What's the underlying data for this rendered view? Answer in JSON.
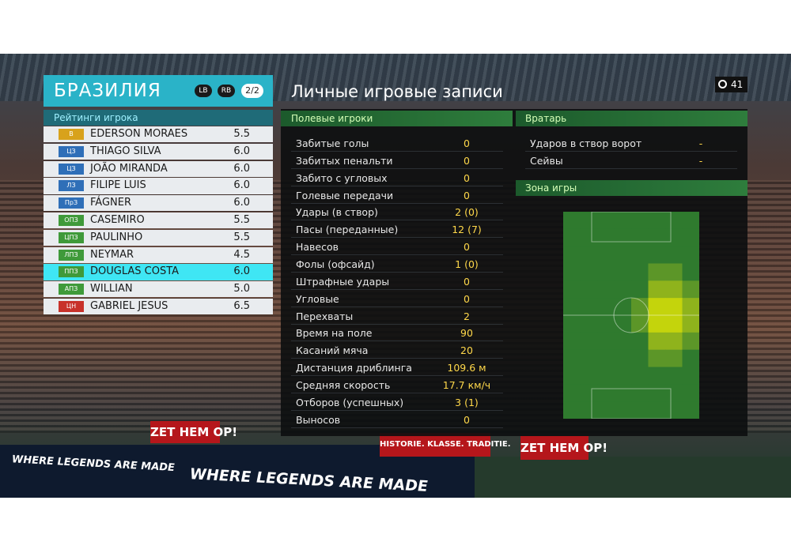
{
  "team": {
    "name": "БРАЗИЛИЯ",
    "buttons": [
      "LB",
      "RB"
    ],
    "page": "2/2"
  },
  "ratings": {
    "title": "Рейтинги игрока",
    "selected": 8,
    "players": [
      {
        "position": "В",
        "name": "EDERSON MORAES",
        "rating": "5.5",
        "color": "#d8a21c"
      },
      {
        "position": "ЦЗ",
        "name": "THIAGO SILVA",
        "rating": "6.0",
        "color": "#2f6fb8"
      },
      {
        "position": "ЦЗ",
        "name": "JOÃO MIRANDA",
        "rating": "6.0",
        "color": "#2f6fb8"
      },
      {
        "position": "ЛЗ",
        "name": "FILIPE LUIS",
        "rating": "6.0",
        "color": "#2f6fb8"
      },
      {
        "position": "ПрЗ",
        "name": "FÁGNER",
        "rating": "6.0",
        "color": "#2f6fb8"
      },
      {
        "position": "ОПЗ",
        "name": "CASEMIRO",
        "rating": "5.5",
        "color": "#3f9a3a"
      },
      {
        "position": "ЦПЗ",
        "name": "PAULINHO",
        "rating": "5.5",
        "color": "#3f9a3a"
      },
      {
        "position": "ЛПЗ",
        "name": "NEYMAR",
        "rating": "4.5",
        "color": "#3f9a3a"
      },
      {
        "position": "ППЗ",
        "name": "DOUGLAS COSTA",
        "rating": "6.0",
        "color": "#3f9a3a"
      },
      {
        "position": "АПЗ",
        "name": "WILLIAN",
        "rating": "5.0",
        "color": "#3f9a3a"
      },
      {
        "position": "ЦН",
        "name": "GABRIEL JESUS",
        "rating": "6.5",
        "color": "#c8322a"
      }
    ]
  },
  "records": {
    "title": "Личные игровые записи",
    "timer": "41",
    "field": {
      "title": "Полевые игроки",
      "rows": [
        {
          "label": "Забитые голы",
          "value": "0"
        },
        {
          "label": "Забитых пенальти",
          "value": "0"
        },
        {
          "label": "Забито с угловых",
          "value": "0"
        },
        {
          "label": "Голевые передачи",
          "value": "0"
        },
        {
          "label": "Удары (в створ)",
          "value": "2 (0)"
        },
        {
          "label": "Пасы (переданные)",
          "value": "12 (7)"
        },
        {
          "label": "Навесов",
          "value": "0"
        },
        {
          "label": "Фолы (офсайд)",
          "value": "1 (0)"
        },
        {
          "label": "Штрафные удары",
          "value": "0"
        },
        {
          "label": "Угловые",
          "value": "0"
        },
        {
          "label": "Перехваты",
          "value": "2"
        },
        {
          "label": "Время на поле",
          "value": "90"
        },
        {
          "label": "Касаний мяча",
          "value": "20"
        },
        {
          "label": "Дистанция дриблинга",
          "value": "109.6 м"
        },
        {
          "label": "Средняя скорость",
          "value": "17.7 км/ч"
        },
        {
          "label": "Отборов (успешных)",
          "value": "3 (1)"
        },
        {
          "label": "Выносов",
          "value": "0"
        }
      ]
    },
    "goalkeeper": {
      "title": "Вратарь",
      "rows": [
        {
          "label": "Ударов в створ ворот",
          "value": "-"
        },
        {
          "label": "Сейвы",
          "value": "-"
        }
      ]
    },
    "zone": {
      "title": "Зона игры"
    }
  },
  "banners": [
    "ZET HEM OP!",
    "HISTORIE. KLASSE. TRADITIE.",
    "ZET HEM OP!",
    "WHERE LEGENDS ARE MADE",
    "WHERE LEGENDS ARE MADE"
  ]
}
